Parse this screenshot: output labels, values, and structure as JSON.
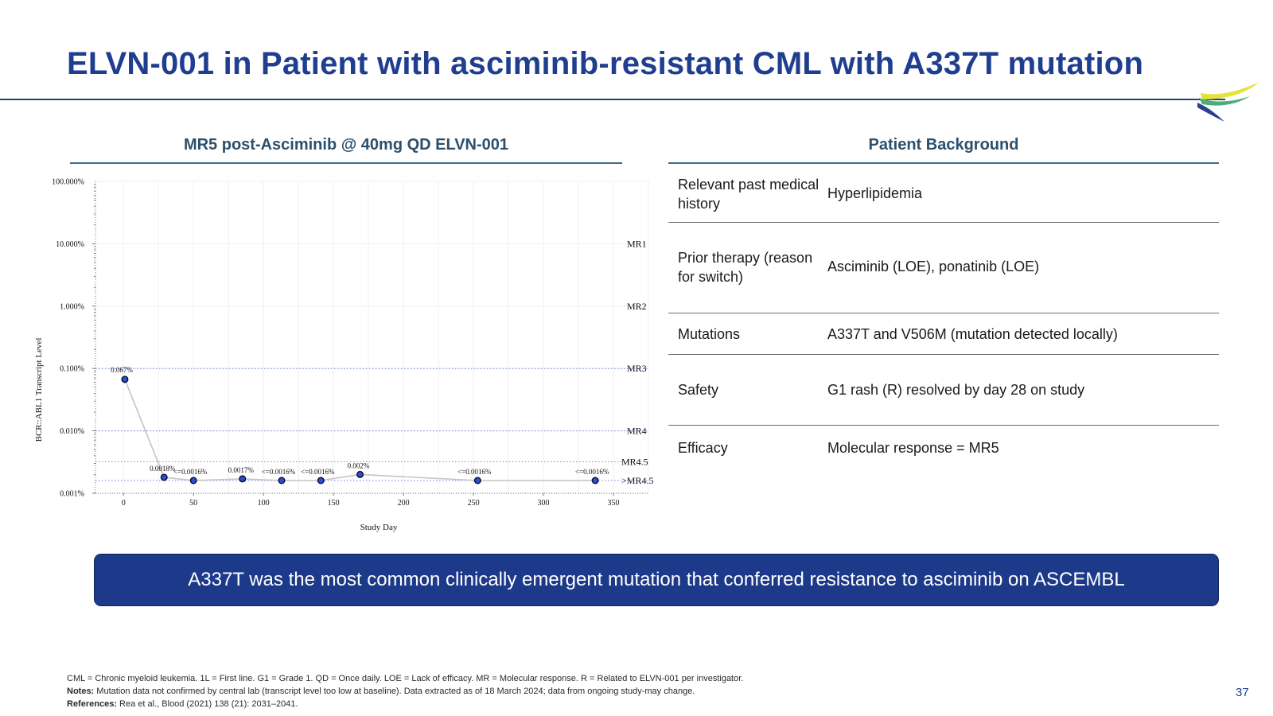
{
  "slide": {
    "title": "ELVN-001 in Patient with asciminib-resistant CML with A337T mutation",
    "page_number": "37"
  },
  "chart_section": {
    "heading": "MR5 post-Asciminib @ 40mg QD ELVN-001"
  },
  "background_section": {
    "heading": "Patient Background",
    "rows": [
      {
        "label": "Relevant past medical history",
        "value": "Hyperlipidemia"
      },
      {
        "label": "Prior therapy (reason for switch)",
        "value": "Asciminib (LOE), ponatinib (LOE)"
      },
      {
        "label": "Mutations",
        "value": "A337T and V506M (mutation detected locally)"
      },
      {
        "label": "Safety",
        "value": "G1 rash (R) resolved by day 28 on study"
      },
      {
        "label": "Efficacy",
        "value": "Molecular response = MR5"
      }
    ]
  },
  "callout": {
    "text": "A337T was the most common clinically emergent mutation that conferred resistance to asciminib on ASCEMBL"
  },
  "footnotes": {
    "line1": "CML = Chronic myeloid leukemia. 1L = First line. G1 = Grade 1. QD = Once daily. LOE = Lack of efficacy. MR = Molecular response. R = Related to ELVN-001 per investigator.",
    "notes_label": "Notes:",
    "notes_text": " Mutation data not confirmed by central lab (transcript level too low at baseline). Data extracted as of 18 March 2024; data from ongoing study-may change.",
    "refs_label": "References:",
    "refs_text": " Rea et al., Blood (2021) 138 (21): 2031–2041."
  },
  "colors": {
    "title": "#1f3e8f",
    "callout_bg": "#1d3a8a",
    "marker_fill": "#2a4fd0",
    "line": "#c4c4c4",
    "ref_line": "#6f86e0"
  },
  "chart_data": {
    "type": "line",
    "xlabel": "Study Day",
    "ylabel": "BCR::ABL1 Transcript Level",
    "xlim": [
      -20,
      375
    ],
    "ylim": [
      0.001,
      100
    ],
    "yscale": "log",
    "x_ticks": [
      0,
      50,
      100,
      150,
      200,
      250,
      300,
      350
    ],
    "y_ticks": [
      {
        "value": 100,
        "label": "100.000%"
      },
      {
        "value": 10,
        "label": "10.000%"
      },
      {
        "value": 1,
        "label": "1.000%"
      },
      {
        "value": 0.1,
        "label": "0.100%"
      },
      {
        "value": 0.01,
        "label": "0.010%"
      },
      {
        "value": 0.001,
        "label": "0.001%"
      }
    ],
    "reference_lines": [
      {
        "value": 10,
        "label": "MR1"
      },
      {
        "value": 1,
        "label": "MR2"
      },
      {
        "value": 0.1,
        "label": "MR3"
      },
      {
        "value": 0.01,
        "label": "MR4"
      },
      {
        "value": 0.0032,
        "label": "MR4.5"
      },
      {
        "value": 0.0016,
        "label": ">MR4.5"
      }
    ],
    "grid": true,
    "points": [
      {
        "x": 1,
        "y": 0.067,
        "label": "0.067%"
      },
      {
        "x": 29,
        "y": 0.0018,
        "label": "0.0018%"
      },
      {
        "x": 50,
        "y": 0.0016,
        "label": "<=0.0016%"
      },
      {
        "x": 85,
        "y": 0.0017,
        "label": "0.0017%"
      },
      {
        "x": 113,
        "y": 0.0016,
        "label": "<=0.0016%"
      },
      {
        "x": 141,
        "y": 0.0016,
        "label": "<=0.0016%"
      },
      {
        "x": 169,
        "y": 0.002,
        "label": "0.002%"
      },
      {
        "x": 253,
        "y": 0.0016,
        "label": "<=0.0016%"
      },
      {
        "x": 337,
        "y": 0.0016,
        "label": "<=0.0016%"
      }
    ]
  }
}
